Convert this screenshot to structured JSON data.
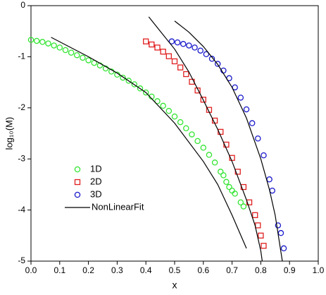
{
  "chart_data": {
    "type": "scatter",
    "xlabel": "x",
    "ylabel": "log₁₀(M)",
    "xlim": [
      0,
      1
    ],
    "ylim": [
      -5,
      0
    ],
    "xticks": [
      {
        "value": 0,
        "label": "0.0"
      },
      0.1,
      0.2,
      0.3,
      0.4,
      0.5,
      0.6,
      0.7,
      0.8,
      0.9,
      {
        "value": 1,
        "label": "1.0"
      }
    ],
    "yticks": [
      0,
      -1,
      -2,
      -3,
      -4,
      -5
    ],
    "legend": "lower-left",
    "grid": false,
    "series": [
      {
        "name": "1D",
        "color": "#33e533",
        "marker": "circle",
        "x": [
          0,
          0.02,
          0.04,
          0.06,
          0.08,
          0.1,
          0.12,
          0.14,
          0.16,
          0.18,
          0.2,
          0.22,
          0.24,
          0.26,
          0.28,
          0.3,
          0.32,
          0.34,
          0.36,
          0.38,
          0.4,
          0.42,
          0.44,
          0.46,
          0.48,
          0.5,
          0.52,
          0.54,
          0.56,
          0.58,
          0.6,
          0.62,
          0.64,
          0.66,
          0.67,
          0.68,
          0.69,
          0.7,
          0.71,
          0.73,
          0.74
        ],
        "values": [
          -0.67,
          -0.69,
          -0.71,
          -0.74,
          -0.78,
          -0.82,
          -0.87,
          -0.92,
          -0.97,
          -1.02,
          -1.07,
          -1.12,
          -1.17,
          -1.23,
          -1.29,
          -1.35,
          -1.41,
          -1.47,
          -1.54,
          -1.62,
          -1.7,
          -1.78,
          -1.87,
          -1.96,
          -2.06,
          -2.17,
          -2.28,
          -2.4,
          -2.52,
          -2.65,
          -2.78,
          -2.92,
          -3.07,
          -3.25,
          -3.32,
          -3.45,
          -3.55,
          -3.62,
          -3.68,
          -3.85,
          -3.93
        ]
      },
      {
        "name": "2D",
        "color": "#e02020",
        "marker": "square",
        "x": [
          0.4,
          0.42,
          0.44,
          0.46,
          0.48,
          0.5,
          0.52,
          0.54,
          0.56,
          0.58,
          0.6,
          0.62,
          0.64,
          0.66,
          0.68,
          0.7,
          0.72,
          0.74,
          0.76,
          0.78,
          0.79,
          0.8,
          0.81
        ],
        "values": [
          -0.7,
          -0.76,
          -0.82,
          -0.9,
          -0.99,
          -1.09,
          -1.21,
          -1.34,
          -1.49,
          -1.66,
          -1.84,
          -2.04,
          -2.25,
          -2.47,
          -2.72,
          -2.98,
          -3.25,
          -3.55,
          -3.85,
          -4.1,
          -4.3,
          -4.5,
          -4.7
        ]
      },
      {
        "name": "3D",
        "color": "#1a1acc",
        "marker": "circle",
        "x": [
          0.49,
          0.51,
          0.53,
          0.55,
          0.57,
          0.59,
          0.61,
          0.63,
          0.65,
          0.67,
          0.69,
          0.71,
          0.73,
          0.75,
          0.77,
          0.79,
          0.81,
          0.83,
          0.84,
          0.86,
          0.87,
          0.88
        ],
        "values": [
          -0.7,
          -0.72,
          -0.75,
          -0.78,
          -0.82,
          -0.88,
          -0.95,
          -1.04,
          -1.14,
          -1.27,
          -1.42,
          -1.6,
          -1.8,
          -2.03,
          -2.3,
          -2.6,
          -2.93,
          -3.4,
          -3.62,
          -4.3,
          -4.45,
          -4.75
        ]
      },
      {
        "name": "NonLinearFit",
        "color": "#000000",
        "marker": "line",
        "x": [
          0.07,
          0.2,
          0.3,
          0.4,
          0.5,
          0.6,
          0.65,
          0.7,
          0.75,
          null,
          0.41,
          0.45,
          0.5,
          0.55,
          0.6,
          0.65,
          0.7,
          0.75,
          0.78,
          0.8,
          0.805,
          null,
          0.5,
          0.55,
          0.6,
          0.65,
          0.7,
          0.75,
          0.8,
          0.83,
          0.85,
          0.875
        ],
        "values": [
          -0.62,
          -1.0,
          -1.32,
          -1.7,
          -2.3,
          -3.05,
          -3.5,
          -4.1,
          -4.75,
          null,
          -0.22,
          -0.5,
          -0.85,
          -1.3,
          -1.85,
          -2.42,
          -3.05,
          -3.8,
          -4.3,
          -4.8,
          -5,
          null,
          -0.3,
          -0.52,
          -0.8,
          -1.15,
          -1.6,
          -2.2,
          -3.0,
          -3.6,
          -4.1,
          -5
        ]
      }
    ]
  }
}
